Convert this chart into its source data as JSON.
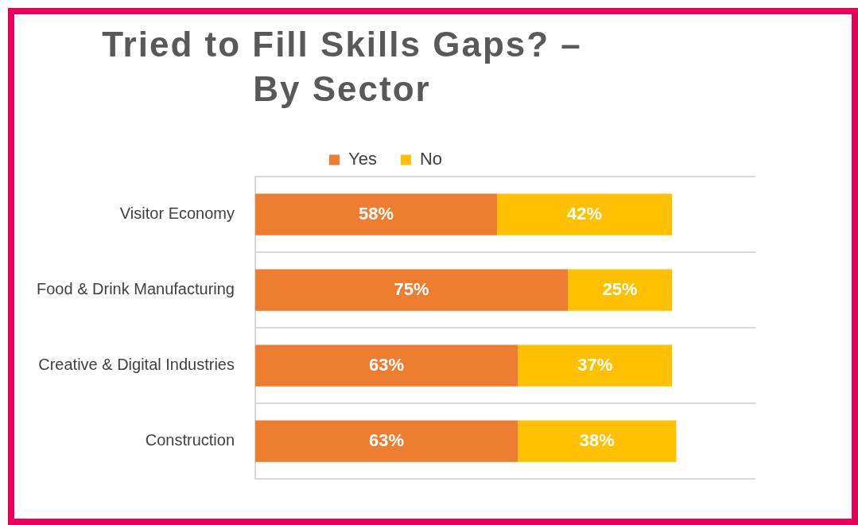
{
  "chart_data": {
    "type": "bar",
    "orientation": "horizontal",
    "stacked": true,
    "title": "Tried to Fill Skills Gaps? – By Sector",
    "categories": [
      "Visitor Economy",
      "Food & Drink Manufacturing",
      "Creative & Digital Industries",
      "Construction"
    ],
    "series": [
      {
        "name": "Yes",
        "color": "#ed7d31",
        "values": [
          58,
          75,
          63,
          63
        ],
        "value_labels": [
          "58%",
          "75%",
          "63%",
          "63%"
        ]
      },
      {
        "name": "No",
        "color": "#ffc000",
        "values": [
          42,
          25,
          37,
          38
        ],
        "value_labels": [
          "42%",
          "25%",
          "37%",
          "38%"
        ]
      }
    ],
    "legend": "top",
    "grid": "y",
    "tick_labels": "y"
  }
}
